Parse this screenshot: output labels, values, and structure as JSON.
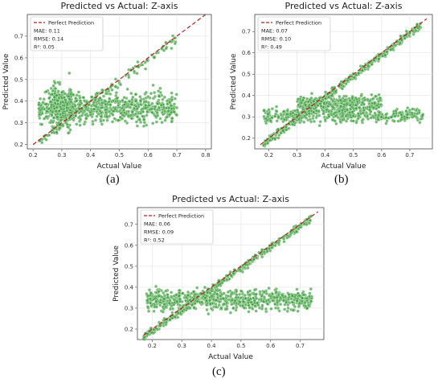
{
  "chart_data": [
    {
      "panel": "a",
      "type": "scatter",
      "title": "Predicted vs Actual: Z-axis",
      "xlabel": "Actual Value",
      "ylabel": "Predicted Value",
      "xlim": [
        0.18,
        0.82
      ],
      "ylim": [
        0.18,
        0.8
      ],
      "xticks": [
        0.2,
        0.3,
        0.4,
        0.5,
        0.6,
        0.7,
        0.8
      ],
      "yticks": [
        0.2,
        0.3,
        0.4,
        0.5,
        0.6,
        0.7
      ],
      "grid": true,
      "legend": {
        "placement": "top-left",
        "entries": [
          "Perfect Prediction",
          "MAE: 0.11",
          "RMSE: 0.14",
          "R²: 0.05"
        ]
      },
      "reference_line": {
        "name": "Perfect Prediction",
        "from": [
          0.2,
          0.2
        ],
        "to": [
          0.8,
          0.8
        ],
        "color": "#b22222",
        "style": "dashed"
      },
      "point_color": "#3d9c3d",
      "clusters": [
        {
          "x": [
            0.22,
            0.7
          ],
          "y_center": 0.37,
          "y_spread": 0.06
        },
        {
          "x": [
            0.22,
            0.7
          ],
          "y_center": "diagonal",
          "y_spread": 0.02
        },
        {
          "x": [
            0.26,
            0.34
          ],
          "y_center": 0.38,
          "y_spread": 0.09
        }
      ],
      "caption": "(a)"
    },
    {
      "panel": "b",
      "type": "scatter",
      "title": "Predicted vs Actual: Z-axis",
      "xlabel": "Actual Value",
      "ylabel": "Predicted Value",
      "xlim": [
        0.15,
        0.78
      ],
      "ylim": [
        0.15,
        0.78
      ],
      "xticks": [
        0.2,
        0.3,
        0.4,
        0.5,
        0.6,
        0.7
      ],
      "yticks": [
        0.2,
        0.3,
        0.4,
        0.5,
        0.6,
        0.7
      ],
      "grid": true,
      "legend": {
        "placement": "top-left",
        "entries": [
          "Perfect Prediction",
          "MAE: 0.07",
          "RMSE: 0.10",
          "R²: 0.49"
        ]
      },
      "reference_line": {
        "name": "Perfect Prediction",
        "from": [
          0.17,
          0.17
        ],
        "to": [
          0.76,
          0.76
        ],
        "color": "#b22222",
        "style": "dashed"
      },
      "point_color": "#3d9c3d",
      "clusters": [
        {
          "x": [
            0.18,
            0.74
          ],
          "y_center": "diagonal",
          "y_spread": 0.015
        },
        {
          "x": [
            0.18,
            0.75
          ],
          "y_center": 0.31,
          "y_spread": 0.03
        },
        {
          "x": [
            0.3,
            0.6
          ],
          "y_center": 0.36,
          "y_spread": 0.03
        }
      ],
      "caption": "(b)"
    },
    {
      "panel": "c",
      "type": "scatter",
      "title": "Predicted vs Actual: Z-axis",
      "xlabel": "Actual Value",
      "ylabel": "Predicted Value",
      "xlim": [
        0.15,
        0.78
      ],
      "ylim": [
        0.15,
        0.78
      ],
      "xticks": [
        0.2,
        0.3,
        0.4,
        0.5,
        0.6,
        0.7
      ],
      "yticks": [
        0.2,
        0.3,
        0.4,
        0.5,
        0.6,
        0.7
      ],
      "grid": true,
      "legend": {
        "placement": "top-left",
        "entries": [
          "Perfect Prediction",
          "MAE: 0.06",
          "RMSE: 0.09",
          "R²: 0.52"
        ]
      },
      "reference_line": {
        "name": "Perfect Prediction",
        "from": [
          0.17,
          0.17
        ],
        "to": [
          0.76,
          0.76
        ],
        "color": "#b22222",
        "style": "dashed"
      },
      "point_color": "#3d9c3d",
      "clusters": [
        {
          "x": [
            0.17,
            0.74
          ],
          "y_center": "diagonal",
          "y_spread": 0.015
        },
        {
          "x": [
            0.18,
            0.74
          ],
          "y_center": 0.34,
          "y_spread": 0.04
        }
      ],
      "caption": "(c)"
    }
  ]
}
